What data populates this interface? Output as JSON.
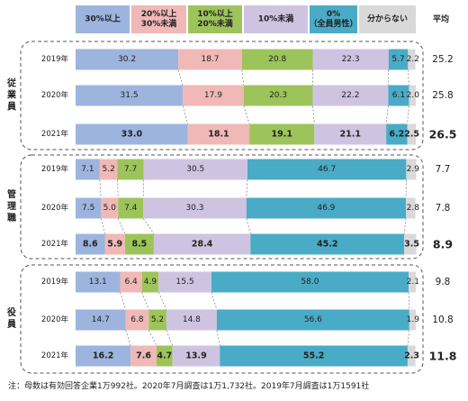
{
  "legend": {
    "items": [
      {
        "label": "30%以上",
        "color": "#9db4de"
      },
      {
        "label": "20%以上\n30%未満",
        "color": "#f0b8b6"
      },
      {
        "label": "10%以上\n20%未満",
        "color": "#9dc45a"
      },
      {
        "label": "10%未満",
        "color": "#cfc3e2"
      },
      {
        "label": "0%\n（全員男性）",
        "color": "#4aabc6"
      },
      {
        "label": "分からない",
        "color": "#d9d9d9"
      }
    ],
    "average_header": "平均"
  },
  "chart_data": {
    "type": "bar",
    "stacked": true,
    "orientation": "horizontal",
    "xlim": [
      0,
      100
    ],
    "series_names": [
      "30%以上",
      "20%以上30%未満",
      "10%以上20%未満",
      "10%未満",
      "0%（全員男性）",
      "分からない"
    ],
    "groups": [
      {
        "name": "従業員",
        "rows": [
          {
            "year": "2019年",
            "values": [
              30.2,
              18.7,
              20.8,
              22.3,
              5.7,
              2.2
            ],
            "average": "25.2",
            "bold": false
          },
          {
            "year": "2020年",
            "values": [
              31.5,
              17.9,
              20.3,
              22.2,
              6.1,
              2.0
            ],
            "average": "25.8",
            "bold": false
          },
          {
            "year": "2021年",
            "values": [
              33.0,
              18.1,
              19.1,
              21.1,
              6.2,
              2.5
            ],
            "average": "26.5",
            "bold": true
          }
        ]
      },
      {
        "name": "管理職",
        "rows": [
          {
            "year": "2019年",
            "values": [
              7.1,
              5.2,
              7.7,
              30.5,
              46.7,
              2.9
            ],
            "average": "7.7",
            "bold": false
          },
          {
            "year": "2020年",
            "values": [
              7.5,
              5.0,
              7.4,
              30.3,
              46.9,
              2.8
            ],
            "average": "7.8",
            "bold": false
          },
          {
            "year": "2021年",
            "values": [
              8.6,
              5.9,
              8.5,
              28.4,
              45.2,
              3.5
            ],
            "average": "8.9",
            "bold": true
          }
        ]
      },
      {
        "name": "役員",
        "rows": [
          {
            "year": "2019年",
            "values": [
              13.1,
              6.4,
              4.9,
              15.5,
              58.0,
              2.1
            ],
            "average": "9.8",
            "bold": false
          },
          {
            "year": "2020年",
            "values": [
              14.7,
              6.8,
              5.2,
              14.8,
              56.6,
              1.9
            ],
            "average": "10.8",
            "bold": false
          },
          {
            "year": "2021年",
            "values": [
              16.2,
              7.6,
              4.7,
              13.9,
              55.2,
              2.3
            ],
            "average": "11.8",
            "bold": true
          }
        ]
      }
    ]
  },
  "note": "注：母数は有効回答企業1万992社。2020年7月調査は1万1,732社。2019年7月調査は1万1591社"
}
